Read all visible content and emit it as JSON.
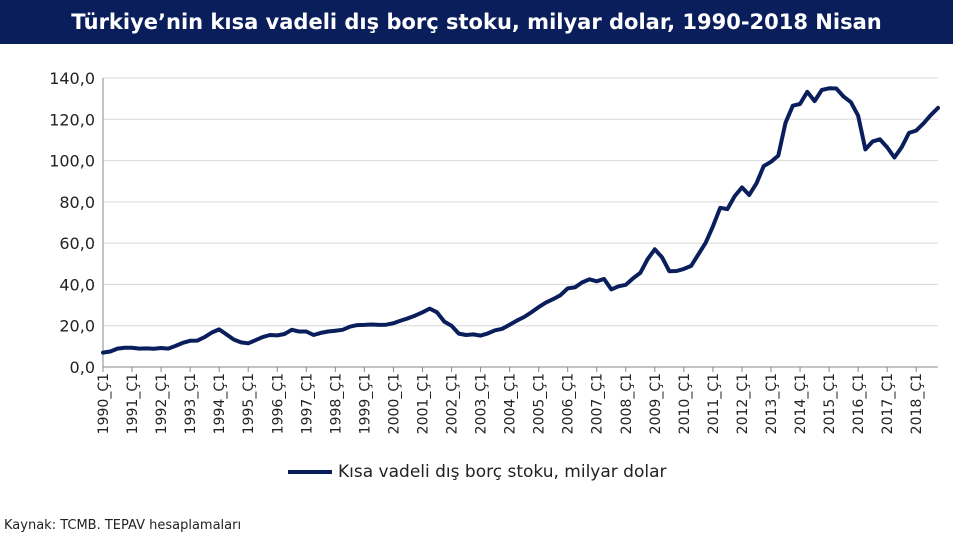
{
  "colors": {
    "title_bg": "#0a1e5c",
    "title_text": "#ffffff",
    "line": "#0a1e5c",
    "grid": "#d9d9d9"
  },
  "chart_data": {
    "type": "line",
    "title": "Türkiye’nin kısa vadeli dış borç stoku, milyar dolar, 1990-2018 Nisan",
    "source": "Kaynak: TCMB. TEPAV hesaplamaları",
    "xlabel": "",
    "ylabel": "",
    "ylim": [
      0,
      140
    ],
    "y_ticks": [
      "0,0",
      "20,0",
      "40,0",
      "60,0",
      "80,0",
      "100,0",
      "120,0",
      "140,0"
    ],
    "grid": true,
    "legend_position": "bottom",
    "x_tick_labels": [
      "1990_Ç1",
      "1991_Ç1",
      "1992_Ç1",
      "1993_Ç1",
      "1994_Ç1",
      "1995_Ç1",
      "1996_Ç1",
      "1997_Ç1",
      "1998_Ç1",
      "1999_Ç1",
      "2000_Ç1",
      "2001_Ç1",
      "2002_Ç1",
      "2003_Ç1",
      "2004_Ç1",
      "2005_Ç1",
      "2006_Ç1",
      "2007_Ç1",
      "2008_Ç1",
      "2009_Ç1",
      "2010_Ç1",
      "2011_Ç1",
      "2012_Ç1",
      "2013_Ç1",
      "2014_Ç1",
      "2015_Ç1",
      "2016_Ç1",
      "2017_Ç1",
      "2018_Ç1"
    ],
    "series": [
      {
        "name": "Kısa vadeli dış borç stoku, milyar dolar",
        "values": [
          7.0,
          7.5,
          8.9,
          9.3,
          9.3,
          8.9,
          9.0,
          8.8,
          9.2,
          8.9,
          10.2,
          11.7,
          12.7,
          12.8,
          14.5,
          16.7,
          18.2,
          15.8,
          13.3,
          11.9,
          11.5,
          13.0,
          14.5,
          15.5,
          15.3,
          16.0,
          18.0,
          17.2,
          17.2,
          15.5,
          16.5,
          17.2,
          17.6,
          18.0,
          19.5,
          20.3,
          20.4,
          20.6,
          20.4,
          20.5,
          21.2,
          22.5,
          23.6,
          24.9,
          26.5,
          28.3,
          26.5,
          22.0,
          20.0,
          16.2,
          15.5,
          15.8,
          15.2,
          16.3,
          17.8,
          18.5,
          20.5,
          22.5,
          24.2,
          26.5,
          29.0,
          31.2,
          32.9,
          34.8,
          38.1,
          38.6,
          41.0,
          42.5,
          41.5,
          42.7,
          37.6,
          39.1,
          39.8,
          42.9,
          45.6,
          52.2,
          57.0,
          53.1,
          46.4,
          46.5,
          47.5,
          49.0,
          54.6,
          60.2,
          68.1,
          77.1,
          76.5,
          82.8,
          87.0,
          83.3,
          89.0,
          97.3,
          99.4,
          102.4,
          118.3,
          126.6,
          127.4,
          133.3,
          128.8,
          134.2,
          135.0,
          134.9,
          131.0,
          128.3,
          121.8,
          105.4,
          109.3,
          110.3,
          106.4,
          101.5,
          106.5,
          113.4,
          114.5,
          118.0,
          122.0,
          125.5
        ]
      }
    ]
  }
}
